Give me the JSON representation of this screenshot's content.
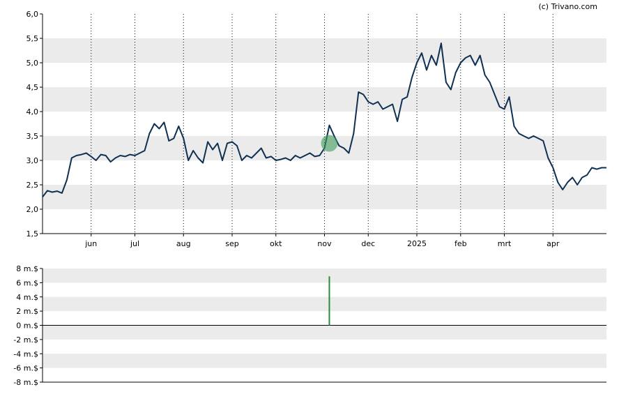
{
  "copyright": "(c) Trivano.com",
  "colors": {
    "price_line": "#0f3050",
    "band": "#ebebeb",
    "marker": "#3c9b5a",
    "volume_bar": "#2a8a3a",
    "axis": "#000000",
    "month_grid": "#000000"
  },
  "chart_data": [
    {
      "type": "line",
      "name": "price",
      "ylim": [
        1.5,
        6.0
      ],
      "y_ticks": [
        "1,5",
        "2,0",
        "2,5",
        "3,0",
        "3,5",
        "4,0",
        "4,5",
        "5,0",
        "5,5",
        "6,0"
      ],
      "x_domain": [
        0,
        58
      ],
      "month_ticks": [
        {
          "label": "jun",
          "t": 10
        },
        {
          "label": "jul",
          "t": 19
        },
        {
          "label": "aug",
          "t": 29
        },
        {
          "label": "sep",
          "t": 39
        },
        {
          "label": "okt",
          "t": 48
        },
        {
          "label": "nov",
          "t": 58
        },
        {
          "label": "dec",
          "t": 67
        },
        {
          "label": "2025",
          "t": 77
        },
        {
          "label": "feb",
          "t": 86
        },
        {
          "label": "mrt",
          "t": 95
        },
        {
          "label": "apr",
          "t": 105
        }
      ],
      "x_domain_total": 116,
      "series": [
        {
          "t": 0,
          "v": 2.25
        },
        {
          "t": 1,
          "v": 2.38
        },
        {
          "t": 2,
          "v": 2.35
        },
        {
          "t": 3,
          "v": 2.37
        },
        {
          "t": 4,
          "v": 2.33
        },
        {
          "t": 5,
          "v": 2.6
        },
        {
          "t": 6,
          "v": 3.05
        },
        {
          "t": 7,
          "v": 3.1
        },
        {
          "t": 8,
          "v": 3.12
        },
        {
          "t": 9,
          "v": 3.15
        },
        {
          "t": 10,
          "v": 3.08
        },
        {
          "t": 11,
          "v": 3.0
        },
        {
          "t": 12,
          "v": 3.12
        },
        {
          "t": 13,
          "v": 3.1
        },
        {
          "t": 14,
          "v": 2.97
        },
        {
          "t": 15,
          "v": 3.05
        },
        {
          "t": 16,
          "v": 3.1
        },
        {
          "t": 17,
          "v": 3.08
        },
        {
          "t": 18,
          "v": 3.12
        },
        {
          "t": 19,
          "v": 3.1
        },
        {
          "t": 20,
          "v": 3.15
        },
        {
          "t": 21,
          "v": 3.2
        },
        {
          "t": 22,
          "v": 3.55
        },
        {
          "t": 23,
          "v": 3.75
        },
        {
          "t": 24,
          "v": 3.65
        },
        {
          "t": 25,
          "v": 3.78
        },
        {
          "t": 26,
          "v": 3.4
        },
        {
          "t": 27,
          "v": 3.45
        },
        {
          "t": 28,
          "v": 3.7
        },
        {
          "t": 29,
          "v": 3.45
        },
        {
          "t": 30,
          "v": 3.0
        },
        {
          "t": 31,
          "v": 3.2
        },
        {
          "t": 32,
          "v": 3.05
        },
        {
          "t": 33,
          "v": 2.95
        },
        {
          "t": 34,
          "v": 3.38
        },
        {
          "t": 35,
          "v": 3.22
        },
        {
          "t": 36,
          "v": 3.35
        },
        {
          "t": 37,
          "v": 3.0
        },
        {
          "t": 38,
          "v": 3.35
        },
        {
          "t": 39,
          "v": 3.38
        },
        {
          "t": 40,
          "v": 3.3
        },
        {
          "t": 41,
          "v": 3.0
        },
        {
          "t": 42,
          "v": 3.1
        },
        {
          "t": 43,
          "v": 3.05
        },
        {
          "t": 44,
          "v": 3.15
        },
        {
          "t": 45,
          "v": 3.25
        },
        {
          "t": 46,
          "v": 3.05
        },
        {
          "t": 47,
          "v": 3.08
        },
        {
          "t": 48,
          "v": 3.0
        },
        {
          "t": 49,
          "v": 3.02
        },
        {
          "t": 50,
          "v": 3.05
        },
        {
          "t": 51,
          "v": 3.0
        },
        {
          "t": 52,
          "v": 3.1
        },
        {
          "t": 53,
          "v": 3.05
        },
        {
          "t": 54,
          "v": 3.1
        },
        {
          "t": 55,
          "v": 3.15
        },
        {
          "t": 56,
          "v": 3.08
        },
        {
          "t": 57,
          "v": 3.1
        },
        {
          "t": 58,
          "v": 3.25
        },
        {
          "t": 59,
          "v": 3.72
        },
        {
          "t": 60,
          "v": 3.5
        },
        {
          "t": 61,
          "v": 3.3
        },
        {
          "t": 62,
          "v": 3.25
        },
        {
          "t": 63,
          "v": 3.15
        },
        {
          "t": 64,
          "v": 3.55
        },
        {
          "t": 65,
          "v": 4.4
        },
        {
          "t": 66,
          "v": 4.35
        },
        {
          "t": 67,
          "v": 4.2
        },
        {
          "t": 68,
          "v": 4.15
        },
        {
          "t": 69,
          "v": 4.2
        },
        {
          "t": 70,
          "v": 4.05
        },
        {
          "t": 71,
          "v": 4.1
        },
        {
          "t": 72,
          "v": 4.15
        },
        {
          "t": 73,
          "v": 3.8
        },
        {
          "t": 74,
          "v": 4.25
        },
        {
          "t": 75,
          "v": 4.3
        },
        {
          "t": 76,
          "v": 4.7
        },
        {
          "t": 77,
          "v": 5.0
        },
        {
          "t": 78,
          "v": 5.2
        },
        {
          "t": 79,
          "v": 4.85
        },
        {
          "t": 80,
          "v": 5.15
        },
        {
          "t": 81,
          "v": 4.95
        },
        {
          "t": 82,
          "v": 5.4
        },
        {
          "t": 83,
          "v": 4.6
        },
        {
          "t": 84,
          "v": 4.45
        },
        {
          "t": 85,
          "v": 4.8
        },
        {
          "t": 86,
          "v": 5.0
        },
        {
          "t": 87,
          "v": 5.1
        },
        {
          "t": 88,
          "v": 5.15
        },
        {
          "t": 89,
          "v": 4.95
        },
        {
          "t": 90,
          "v": 5.15
        },
        {
          "t": 91,
          "v": 4.75
        },
        {
          "t": 92,
          "v": 4.6
        },
        {
          "t": 93,
          "v": 4.35
        },
        {
          "t": 94,
          "v": 4.1
        },
        {
          "t": 95,
          "v": 4.05
        },
        {
          "t": 96,
          "v": 4.3
        },
        {
          "t": 97,
          "v": 3.7
        },
        {
          "t": 98,
          "v": 3.55
        },
        {
          "t": 99,
          "v": 3.5
        },
        {
          "t": 100,
          "v": 3.45
        },
        {
          "t": 101,
          "v": 3.5
        },
        {
          "t": 102,
          "v": 3.45
        },
        {
          "t": 103,
          "v": 3.4
        },
        {
          "t": 104,
          "v": 3.05
        },
        {
          "t": 105,
          "v": 2.85
        },
        {
          "t": 106,
          "v": 2.55
        },
        {
          "t": 107,
          "v": 2.4
        },
        {
          "t": 108,
          "v": 2.55
        },
        {
          "t": 109,
          "v": 2.65
        },
        {
          "t": 110,
          "v": 2.5
        },
        {
          "t": 111,
          "v": 2.65
        },
        {
          "t": 112,
          "v": 2.7
        },
        {
          "t": 113,
          "v": 2.85
        },
        {
          "t": 114,
          "v": 2.82
        },
        {
          "t": 115,
          "v": 2.85
        },
        {
          "t": 116,
          "v": 2.85
        }
      ],
      "marker": {
        "t": 59,
        "v": 3.35
      }
    },
    {
      "type": "bar",
      "name": "volume",
      "ylim": [
        -8,
        8
      ],
      "y_ticks": [
        "8 m.$",
        "6 m.$",
        "4 m.$",
        "2 m.$",
        "0 m.$",
        "-2 m.$",
        "-4 m.$",
        "-6 m.$",
        "-8 m.$"
      ],
      "bars": [
        {
          "t": 59,
          "v": 6.9
        }
      ]
    }
  ]
}
